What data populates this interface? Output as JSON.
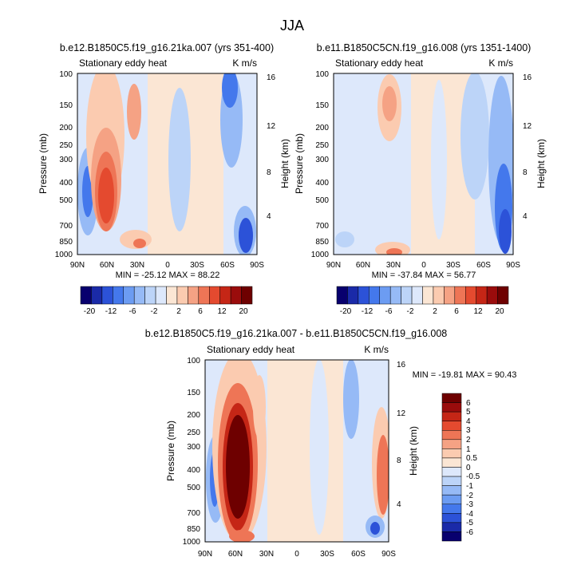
{
  "figure": {
    "title": "JJA"
  },
  "chart_data": [
    {
      "type": "heatmap",
      "title": "b.e12.B1850C5.f19_g16.21ka.007 (yrs 351-400)",
      "subtitle": "Stationary eddy heat",
      "units": "K m/s",
      "xlabel": "",
      "ylabel": "Pressure (mb)",
      "ylabel_right": "Height (km)",
      "x_ticks": [
        "90N",
        "60N",
        "30N",
        "0",
        "30S",
        "60S",
        "90S"
      ],
      "y_ticks": [
        "100",
        "150",
        "200",
        "250",
        "300",
        "400",
        "500",
        "700",
        "850",
        "1000"
      ],
      "y_right_ticks": [
        "16",
        "12",
        "8",
        "4"
      ],
      "ylim": [
        1000,
        100
      ],
      "stats": "MIN = -25.12   MAX = 88.22",
      "colorbar": {
        "labels": [
          "-20",
          "-12",
          "-6",
          "-2",
          "2",
          "6",
          "12",
          "20"
        ]
      }
    },
    {
      "type": "heatmap",
      "title": "b.e11.B1850C5CN.f19_g16.008 (yrs 1351-1400)",
      "subtitle": "Stationary eddy heat",
      "units": "K m/s",
      "xlabel": "",
      "ylabel": "Pressure (mb)",
      "ylabel_right": "Height (km)",
      "x_ticks": [
        "90N",
        "60N",
        "30N",
        "0",
        "30S",
        "60S",
        "90S"
      ],
      "y_ticks": [
        "100",
        "150",
        "200",
        "250",
        "300",
        "400",
        "500",
        "700",
        "850",
        "1000"
      ],
      "y_right_ticks": [
        "16",
        "12",
        "8",
        "4"
      ],
      "ylim": [
        1000,
        100
      ],
      "stats": "MIN = -37.84   MAX = 56.77",
      "colorbar": {
        "labels": [
          "-20",
          "-12",
          "-6",
          "-2",
          "2",
          "6",
          "12",
          "20"
        ]
      }
    },
    {
      "type": "heatmap",
      "title": "b.e12.B1850C5.f19_g16.21ka.007 - b.e11.B1850C5CN.f19_g16.008",
      "subtitle": "Stationary eddy heat",
      "units": "K m/s",
      "xlabel": "",
      "ylabel": "Pressure (mb)",
      "ylabel_right": "Height (km)",
      "x_ticks": [
        "90N",
        "60N",
        "30N",
        "0",
        "30S",
        "60S",
        "90S"
      ],
      "y_ticks": [
        "100",
        "150",
        "200",
        "250",
        "300",
        "400",
        "500",
        "700",
        "850",
        "1000"
      ],
      "y_right_ticks": [
        "16",
        "12",
        "8",
        "4"
      ],
      "ylim": [
        1000,
        100
      ],
      "stats": "MIN = -19.81   MAX = 90.43",
      "colorbar": {
        "labels": [
          "6",
          "5",
          "4",
          "3",
          "2",
          "1",
          "0.5",
          "0",
          "-0.5",
          "-1",
          "-2",
          "-3",
          "-4",
          "-5",
          "-6"
        ]
      }
    }
  ],
  "colors": {
    "scale": [
      "#08006e",
      "#1a2aa8",
      "#2c52d8",
      "#4478ec",
      "#6c9cf2",
      "#96baf6",
      "#bcd4f8",
      "#dde8fb",
      "#fbe6d4",
      "#fbcbb0",
      "#f5a284",
      "#ee7556",
      "#e44a2f",
      "#c52616",
      "#9a0c0c",
      "#6e0000"
    ]
  }
}
